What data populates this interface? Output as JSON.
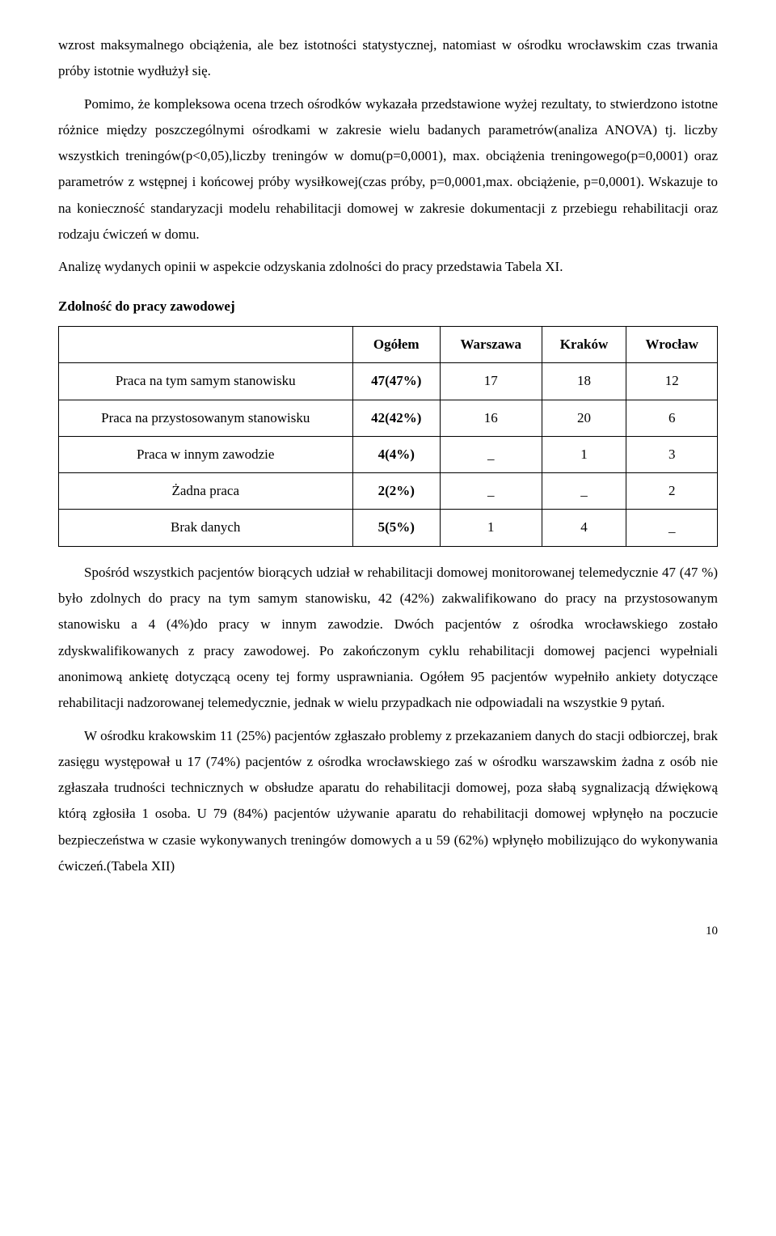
{
  "paragraphs": {
    "p1": "wzrost maksymalnego obciążenia, ale bez istotności statystycznej, natomiast w ośrodku wrocławskim czas trwania próby istotnie wydłużył się.",
    "p2": "Pomimo, że kompleksowa ocena trzech ośrodków wykazała przedstawione wyżej rezultaty, to stwierdzono istotne różnice między poszczególnymi ośrodkami w zakresie wielu badanych parametrów(analiza ANOVA) tj. liczby wszystkich treningów(p<0,05),liczby treningów w domu(p=0,0001), max. obciążenia treningowego(p=0,0001) oraz parametrów z wstępnej i końcowej próby wysiłkowej(czas próby, p=0,0001,max. obciążenie, p=0,0001). Wskazuje to na konieczność standaryzacji modelu rehabilitacji domowej w zakresie dokumentacji z przebiegu rehabilitacji oraz rodzaju ćwiczeń w domu.",
    "p3": "Analizę wydanych opinii w aspekcie odzyskania zdolności do pracy przedstawia Tabela XI.",
    "section_heading": "Zdolność do pracy zawodowej",
    "p4": "Spośród wszystkich pacjentów biorących udział w rehabilitacji domowej monitorowanej telemedycznie 47 (47 %) było zdolnych do pracy na tym samym stanowisku, 42 (42%) zakwalifikowano do pracy na przystosowanym stanowisku a 4 (4%)do pracy w innym zawodzie. Dwóch pacjentów z ośrodka wrocławskiego zostało zdyskwalifikowanych z pracy zawodowej. Po zakończonym cyklu rehabilitacji domowej pacjenci wypełniali anonimową ankietę dotyczącą oceny tej formy usprawniania. Ogółem 95 pacjentów wypełniło ankiety dotyczące rehabilitacji nadzorowanej telemedycznie, jednak w wielu przypadkach nie odpowiadali na wszystkie 9 pytań.",
    "p5": "W ośrodku krakowskim 11 (25%) pacjentów zgłaszało problemy z przekazaniem danych do stacji odbiorczej, brak zasięgu występował u 17 (74%) pacjentów z ośrodka wrocławskiego zaś w ośrodku warszawskim żadna z osób nie zgłaszała trudności technicznych w obsłudze aparatu do rehabilitacji domowej, poza słabą sygnalizacją dźwiękową którą zgłosiła 1 osoba. U 79 (84%) pacjentów używanie aparatu do rehabilitacji domowej wpłynęło na poczucie bezpieczeństwa w czasie wykonywanych treningów domowych  a u 59 (62%) wpłynęło mobilizująco do wykonywania ćwiczeń.(Tabela XII)"
  },
  "table": {
    "columns": [
      "",
      "Ogółem",
      "Warszawa",
      "Kraków",
      "Wrocław"
    ],
    "rows": [
      {
        "label": "Praca na tym samym stanowisku",
        "cells": [
          "47(47%)",
          "17",
          "18",
          "12"
        ]
      },
      {
        "label": "Praca na przystosowanym stanowisku",
        "cells": [
          "42(42%)",
          "16",
          "20",
          "6"
        ]
      },
      {
        "label": "Praca w innym zawodzie",
        "cells": [
          "4(4%)",
          "_",
          "1",
          "3"
        ]
      },
      {
        "label": "Żadna praca",
        "cells": [
          "2(2%)",
          "_",
          "_",
          "2"
        ]
      },
      {
        "label": "Brak danych",
        "cells": [
          "5(5%)",
          "1",
          "4",
          "_"
        ]
      }
    ],
    "header_bold": true,
    "first_col_bold": true,
    "border_color": "#000000",
    "font_size": 17
  },
  "page_number": "10",
  "colors": {
    "background": "#ffffff",
    "text": "#000000",
    "border": "#000000"
  },
  "typography": {
    "body_font_size_pt": 12,
    "body_font_family": "Times New Roman",
    "line_height": 1.9
  }
}
